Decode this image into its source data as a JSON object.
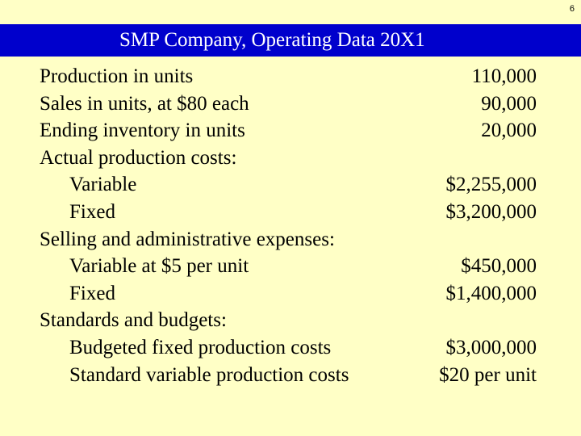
{
  "page_number": "6",
  "title": "SMP Company, Operating Data 20X1",
  "rows": [
    {
      "label": "Production in units",
      "value": "110,000"
    },
    {
      "label": "Sales in units, at $80 each",
      "value": "90,000"
    },
    {
      "label": "Ending inventory in units",
      "value": "20,000"
    },
    {
      "label": "Actual production costs:",
      "value": ""
    },
    {
      "label": "Variable",
      "value": "$2,255,000"
    },
    {
      "label": "Fixed",
      "value": "$3,200,000"
    },
    {
      "label": "Selling and administrative expenses:",
      "value": ""
    },
    {
      "label": "Variable at $5 per unit",
      "value": "$450,000"
    },
    {
      "label": "Fixed",
      "value": "$1,400,000"
    },
    {
      "label": "Standards and budgets:",
      "value": ""
    },
    {
      "label": "Budgeted fixed production costs",
      "value": "$3,000,000"
    },
    {
      "label": "Standard variable production costs",
      "value": "$20 per unit"
    }
  ],
  "colors": {
    "background": "#ffffc6",
    "title_bar": "#0000cc",
    "title_text": "#ffffff"
  }
}
